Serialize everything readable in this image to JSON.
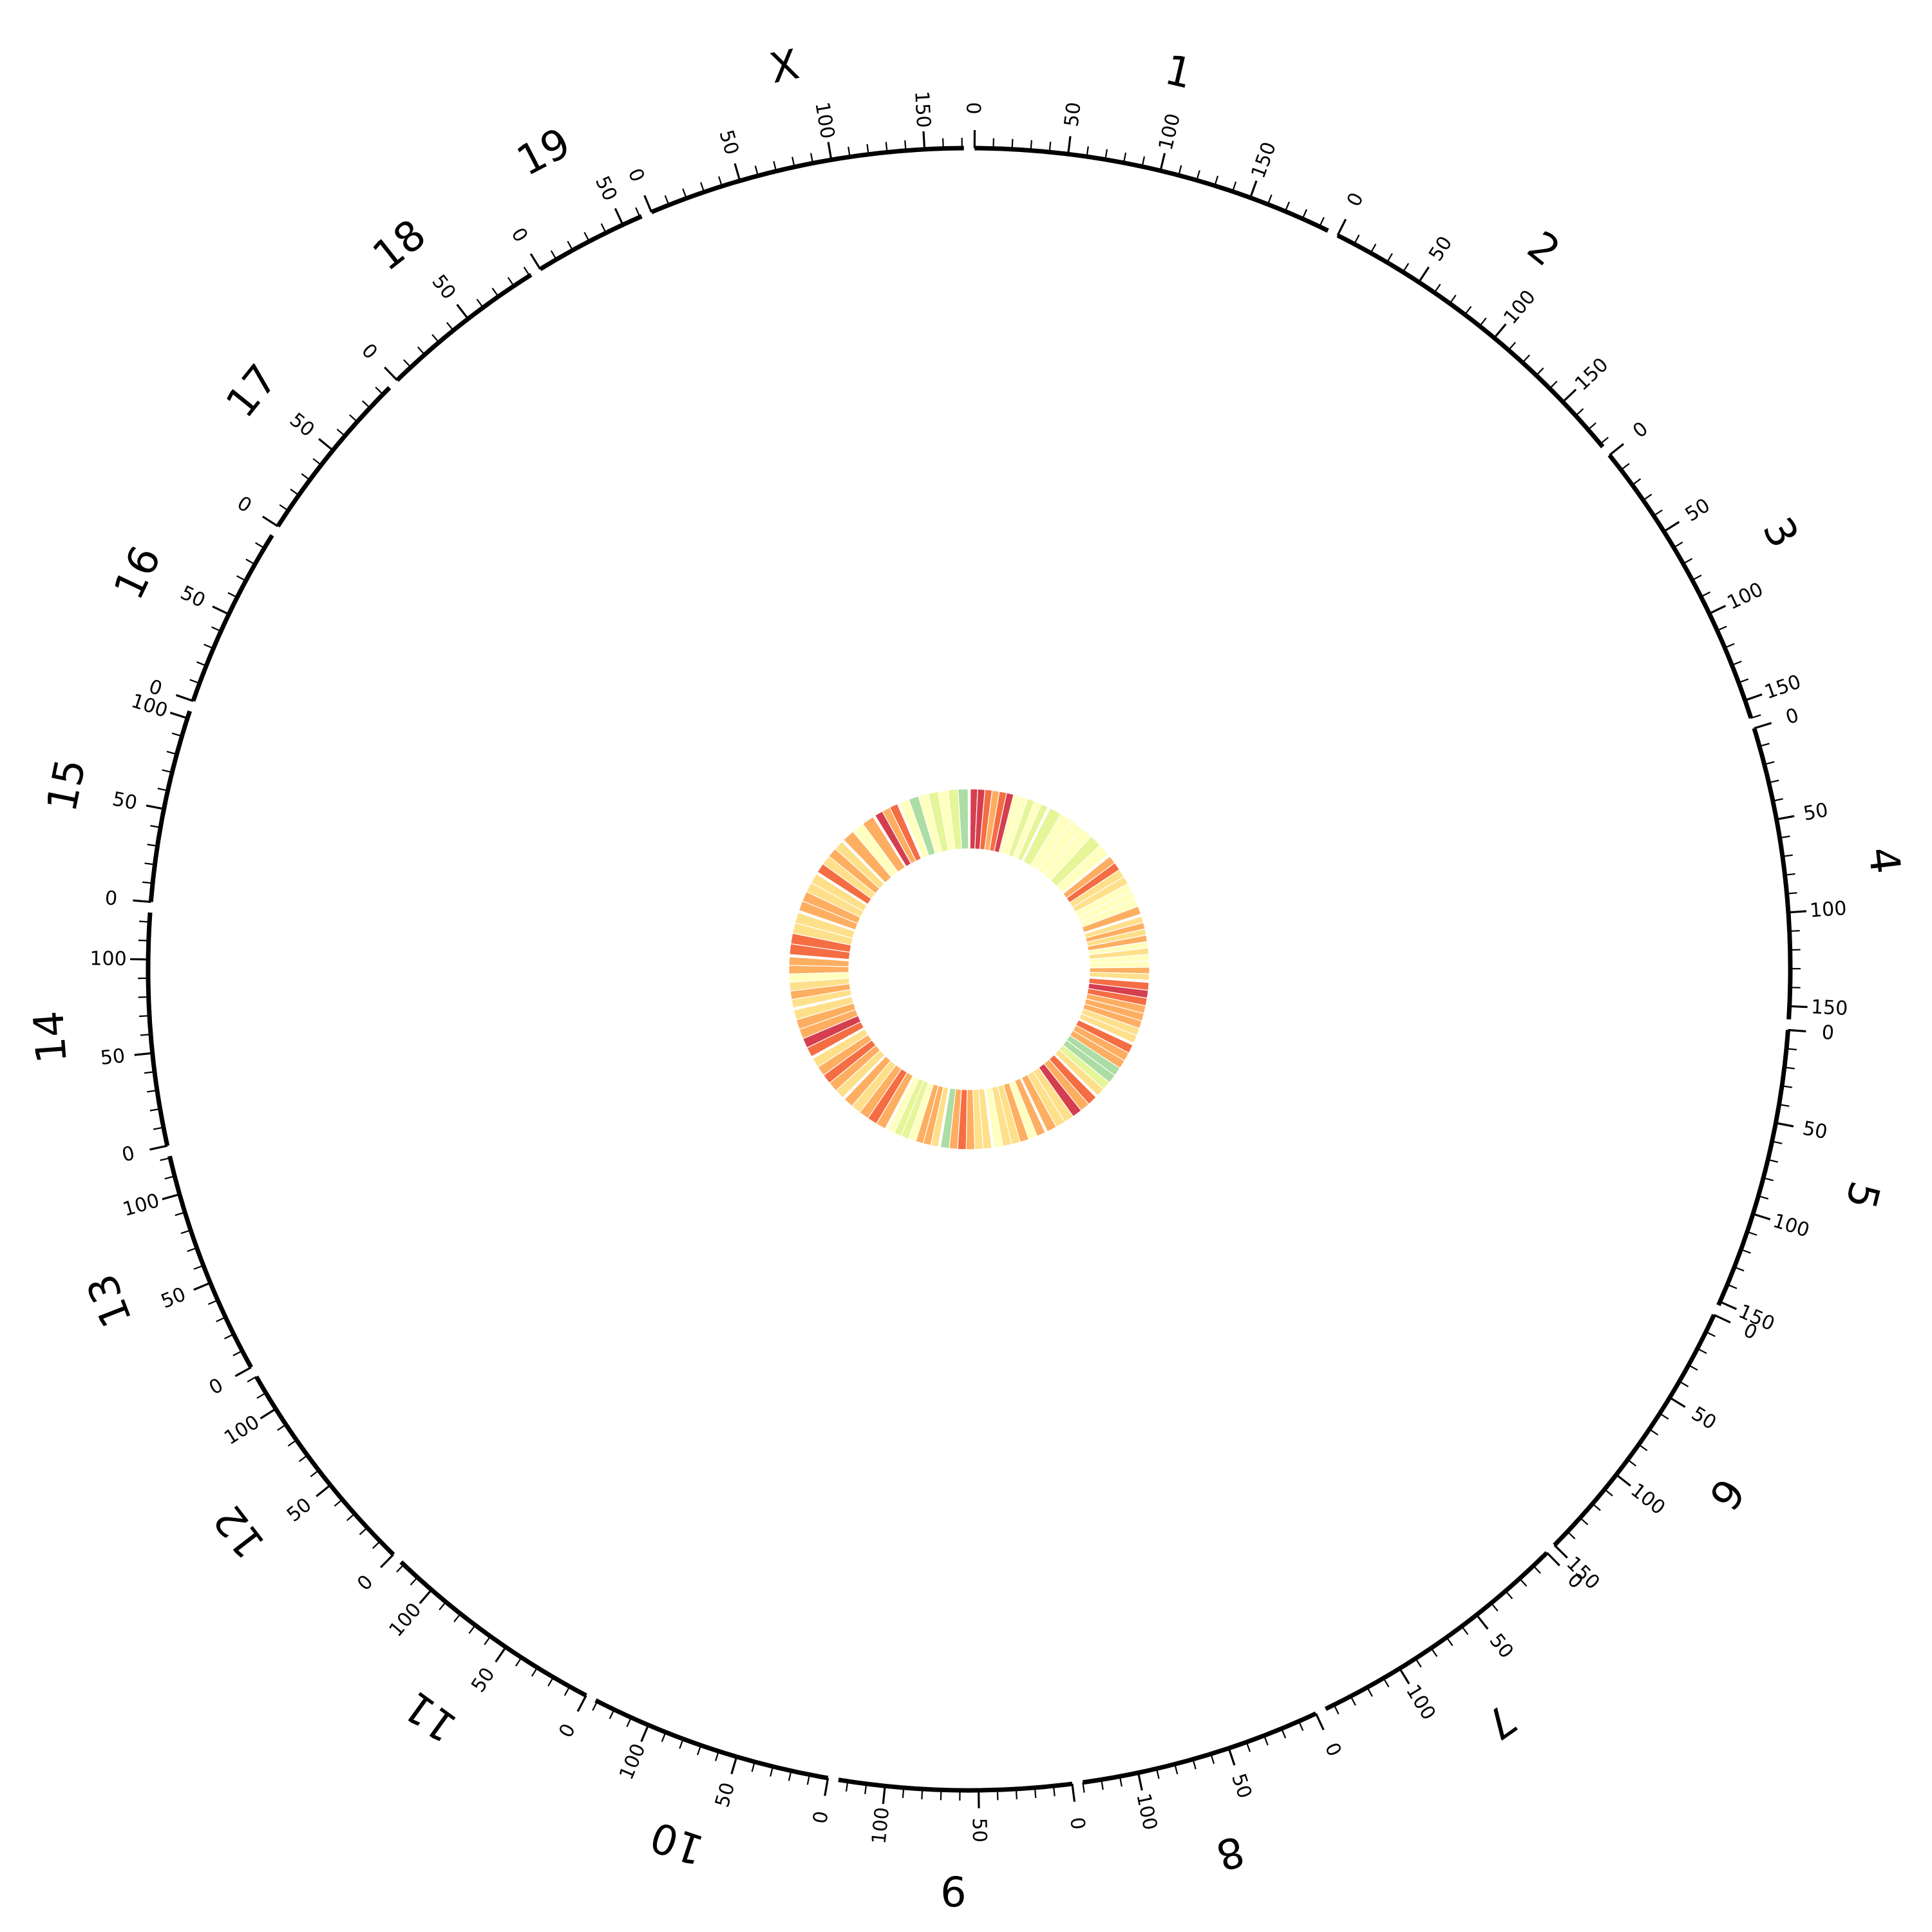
{
  "chart_data": {
    "type": "heatmap",
    "layout": "circular",
    "tick_step": 50,
    "chromosomes": [
      {
        "name": "1",
        "length": 195
      },
      {
        "name": "2",
        "length": 182
      },
      {
        "name": "3",
        "length": 160
      },
      {
        "name": "4",
        "length": 157
      },
      {
        "name": "5",
        "length": 152
      },
      {
        "name": "6",
        "length": 150
      },
      {
        "name": "7",
        "length": 145
      },
      {
        "name": "8",
        "length": 130
      },
      {
        "name": "9",
        "length": 125
      },
      {
        "name": "10",
        "length": 131
      },
      {
        "name": "11",
        "length": 122
      },
      {
        "name": "12",
        "length": 120
      },
      {
        "name": "13",
        "length": 121
      },
      {
        "name": "14",
        "length": 125
      },
      {
        "name": "15",
        "length": 104
      },
      {
        "name": "16",
        "length": 98
      },
      {
        "name": "17",
        "length": 95
      },
      {
        "name": "18",
        "length": 91
      },
      {
        "name": "19",
        "length": 61
      },
      {
        "name": "X",
        "length": 171
      }
    ],
    "heatmap": {
      "colormap": [
        "#9e0142",
        "#d53e4f",
        "#f46d43",
        "#fdae61",
        "#fee08b",
        "#ffffbf",
        "#e6f598",
        "#abdda4",
        "#66c2a5",
        "#3288bd"
      ],
      "values": [
        [
          0.1,
          0.08,
          0.25,
          0.35,
          0.18,
          0.12,
          0.55,
          0.6,
          0.65,
          0.55,
          0.7
        ],
        [
          0.62,
          0.55,
          0.6,
          0.58,
          0.65,
          0.55
        ],
        [
          0.3,
          0.25,
          0.4,
          0.45,
          0.55,
          0.6,
          0.5,
          0.35
        ],
        [
          0.4,
          0.35,
          0.42,
          0.38,
          0.5,
          0.45,
          0.6,
          0.55,
          0.3,
          0.4
        ],
        [
          0.2,
          0.15,
          0.25,
          0.3,
          0.35,
          0.28,
          0.4,
          0.45
        ],
        [
          0.2,
          0.3,
          0.38,
          0.82,
          0.75,
          0.65,
          0.45
        ],
        [
          0.25,
          0.35,
          0.1,
          0.4,
          0.45,
          0.3
        ],
        [
          0.3,
          0.5,
          0.35,
          0.45,
          0.4,
          0.55
        ],
        [
          0.45,
          0.4,
          0.38,
          0.25,
          0.35,
          0.75
        ],
        [
          0.4,
          0.35,
          0.38,
          0.55,
          0.7,
          0.65,
          0.6
        ],
        [
          0.3,
          0.25,
          0.35,
          0.4,
          0.28
        ],
        [
          0.4,
          0.3,
          0.25,
          0.35,
          0.45
        ],
        [
          0.2,
          0.15,
          0.35,
          0.3,
          0.4
        ],
        [
          0.42,
          0.38,
          0.45,
          0.5,
          0.35,
          0.3
        ],
        [
          0.2,
          0.25,
          0.4,
          0.45
        ],
        [
          0.35,
          0.3,
          0.45,
          0.42
        ],
        [
          0.25,
          0.4,
          0.38,
          0.45
        ],
        [
          0.3,
          0.5,
          0.35
        ],
        [
          0.15,
          0.3,
          0.2
        ],
        [
          0.5,
          0.8,
          0.6,
          0.7,
          0.55,
          0.65,
          0.75
        ]
      ]
    }
  }
}
